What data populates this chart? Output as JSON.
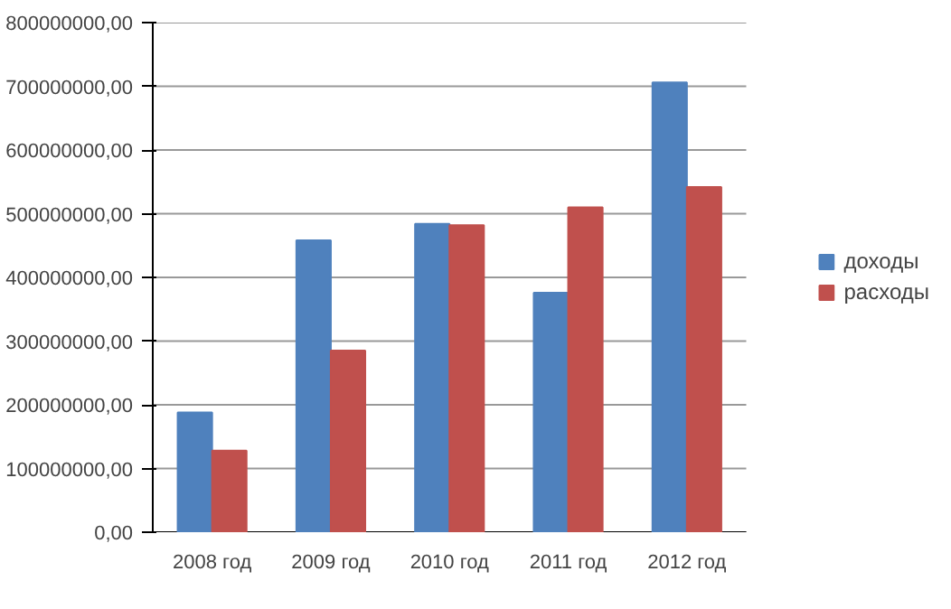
{
  "chart_data": {
    "type": "bar",
    "categories": [
      "2008 год",
      "2009 год",
      "2010 год",
      "2011 год",
      "2012 год"
    ],
    "series": [
      {
        "name": "доходы",
        "color": "#4f81bd",
        "values": [
          188000000,
          458000000,
          484000000,
          376000000,
          706000000
        ]
      },
      {
        "name": "расходы",
        "color": "#c0504d",
        "values": [
          128000000,
          285000000,
          482000000,
          510000000,
          542000000
        ]
      }
    ],
    "ylim": [
      0,
      800000000
    ],
    "yticks": [
      {
        "value": 0,
        "label": "0,00"
      },
      {
        "value": 100000000,
        "label": "100000000,00"
      },
      {
        "value": 200000000,
        "label": "200000000,00"
      },
      {
        "value": 300000000,
        "label": "300000000,00"
      },
      {
        "value": 400000000,
        "label": "400000000,00"
      },
      {
        "value": 500000000,
        "label": "500000000,00"
      },
      {
        "value": 600000000,
        "label": "600000000,00"
      },
      {
        "value": 700000000,
        "label": "700000000,00"
      },
      {
        "value": 800000000,
        "label": "800000000,00"
      }
    ],
    "grid": "y",
    "legend": "right"
  }
}
